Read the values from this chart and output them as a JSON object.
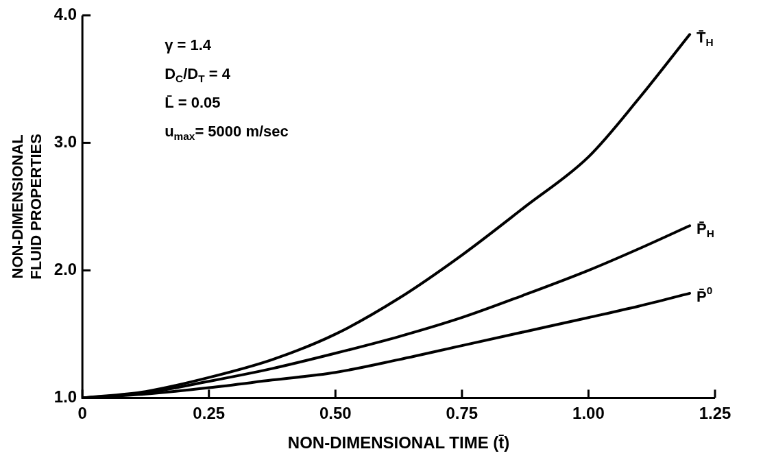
{
  "chart_data": {
    "type": "line",
    "xlabel": "NON-DIMENSIONAL TIME (t̄)",
    "ylabel": "NON-DIMENSIONAL\nFLUID PROPERTIES",
    "x": [
      0,
      0.125,
      0.25,
      0.375,
      0.5,
      0.625,
      0.75,
      0.875,
      1.0,
      1.1,
      1.2
    ],
    "series": [
      {
        "name": "T̄$_{H}$",
        "color": "#000000",
        "values": [
          1.0,
          1.05,
          1.16,
          1.3,
          1.5,
          1.78,
          2.12,
          2.5,
          2.89,
          3.35,
          3.85
        ]
      },
      {
        "name": "P̄$_{H}$",
        "color": "#000000",
        "values": [
          1.0,
          1.04,
          1.13,
          1.23,
          1.35,
          1.48,
          1.63,
          1.81,
          2.0,
          2.17,
          2.35
        ]
      },
      {
        "name": "P̄$^{0}$",
        "color": "#000000",
        "values": [
          1.0,
          1.03,
          1.08,
          1.14,
          1.2,
          1.3,
          1.41,
          1.52,
          1.63,
          1.72,
          1.82
        ]
      }
    ],
    "annotations": [
      "γ = 1.4",
      "D$_{C}$/D$_{T}$ = 4",
      "L̄ = 0.05",
      "u$_{max}$= 5000 m/sec"
    ],
    "xlim": [
      0,
      1.25
    ],
    "xticks": [
      0,
      0.25,
      {
        "value": 0.5,
        "label": "0.50"
      },
      0.75,
      {
        "value": 1.0,
        "label": "1.00"
      },
      1.25
    ],
    "ylim": [
      1,
      4
    ],
    "yticks": [
      {
        "value": 1,
        "label": "1.0"
      },
      {
        "value": 2,
        "label": "2.0"
      },
      {
        "value": 3,
        "label": "3.0"
      },
      {
        "value": 4,
        "label": "4.0"
      }
    ],
    "grid": false,
    "legend": false,
    "marker": "none",
    "line_style": "solid"
  }
}
